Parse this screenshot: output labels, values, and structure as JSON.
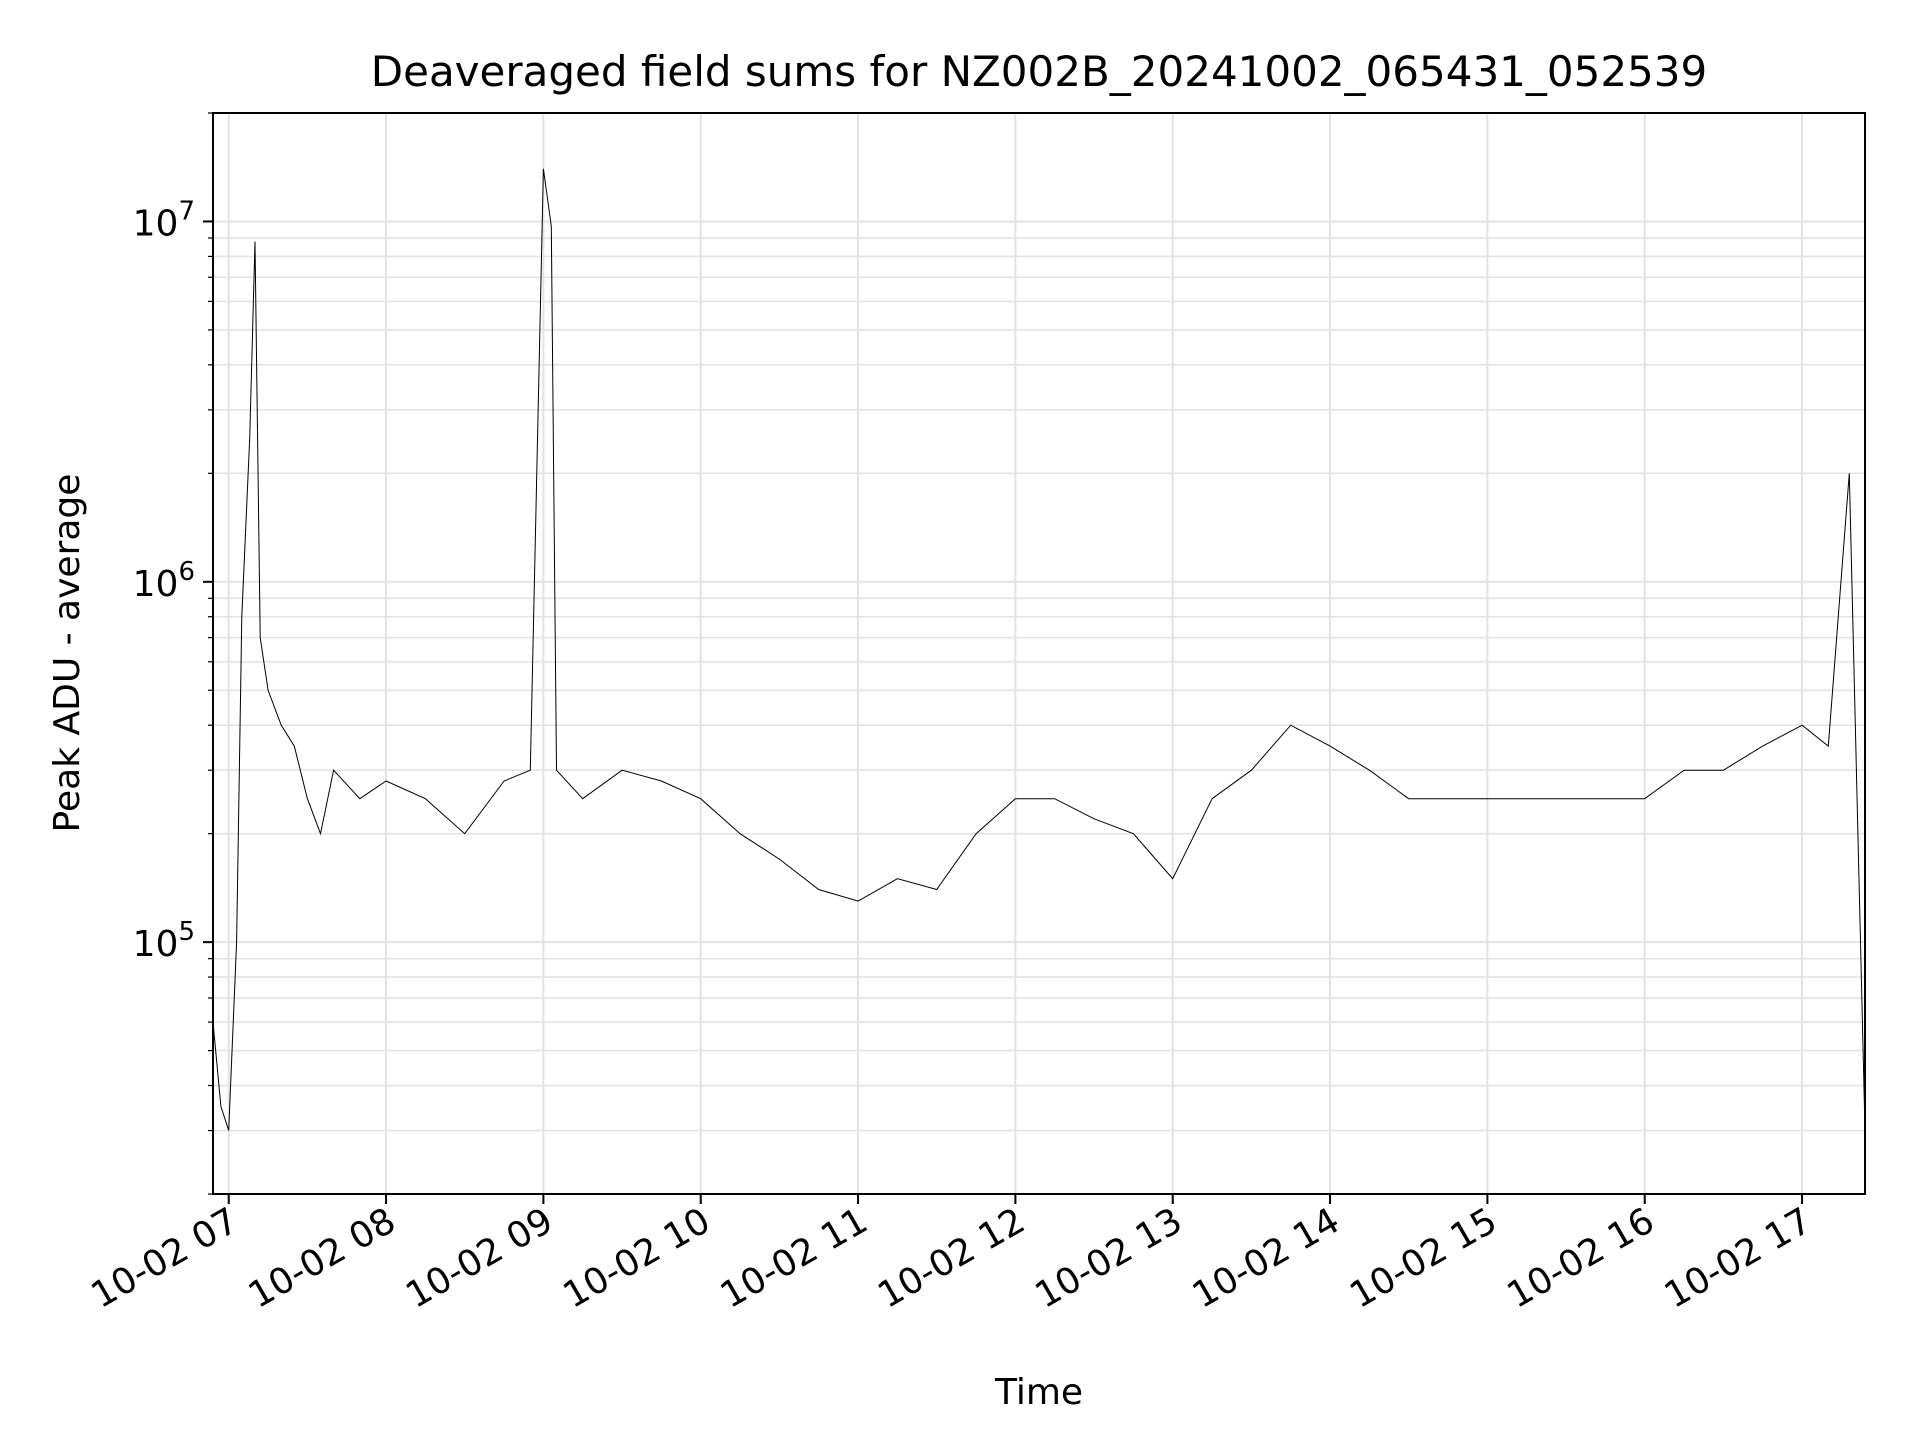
{
  "chart_data": {
    "type": "line",
    "title": "Deaveraged field sums for NZ002B_20241002_065431_052539",
    "xlabel": "Time",
    "ylabel": "Peak ADU - average",
    "yscale": "log",
    "ylim": [
      20000,
      20000000
    ],
    "xlim": [
      "2024-10-02 06:54",
      "2024-10-02 17:24"
    ],
    "grid": true,
    "x_tick_labels": [
      "10-02 07",
      "10-02 08",
      "10-02 09",
      "10-02 10",
      "10-02 11",
      "10-02 12",
      "10-02 13",
      "10-02 14",
      "10-02 15",
      "10-02 16",
      "10-02 17"
    ],
    "x_tick_values": [
      "2024-10-02 07:00",
      "2024-10-02 08:00",
      "2024-10-02 09:00",
      "2024-10-02 10:00",
      "2024-10-02 11:00",
      "2024-10-02 12:00",
      "2024-10-02 13:00",
      "2024-10-02 14:00",
      "2024-10-02 15:00",
      "2024-10-02 16:00",
      "2024-10-02 17:00"
    ],
    "y_tick_labels": [
      {
        "base": "10",
        "exp": "5",
        "value": 100000
      },
      {
        "base": "10",
        "exp": "6",
        "value": 1000000
      },
      {
        "base": "10",
        "exp": "7",
        "value": 10000000
      }
    ],
    "line_color": "#000000",
    "series": [
      {
        "x": [
          "2024-10-02 06:54",
          "2024-10-02 06:57",
          "2024-10-02 07:00",
          "2024-10-02 07:03",
          "2024-10-02 07:05",
          "2024-10-02 07:08",
          "2024-10-02 07:10",
          "2024-10-02 07:12",
          "2024-10-02 07:15",
          "2024-10-02 07:20",
          "2024-10-02 07:25",
          "2024-10-02 07:30",
          "2024-10-02 07:35",
          "2024-10-02 07:40",
          "2024-10-02 07:50",
          "2024-10-02 08:00",
          "2024-10-02 08:15",
          "2024-10-02 08:30",
          "2024-10-02 08:45",
          "2024-10-02 08:55",
          "2024-10-02 09:00",
          "2024-10-02 09:03",
          "2024-10-02 09:05",
          "2024-10-02 09:15",
          "2024-10-02 09:30",
          "2024-10-02 09:45",
          "2024-10-02 10:00",
          "2024-10-02 10:15",
          "2024-10-02 10:30",
          "2024-10-02 10:45",
          "2024-10-02 11:00",
          "2024-10-02 11:15",
          "2024-10-02 11:30",
          "2024-10-02 11:45",
          "2024-10-02 12:00",
          "2024-10-02 12:15",
          "2024-10-02 12:30",
          "2024-10-02 12:45",
          "2024-10-02 13:00",
          "2024-10-02 13:15",
          "2024-10-02 13:30",
          "2024-10-02 13:45",
          "2024-10-02 14:00",
          "2024-10-02 14:15",
          "2024-10-02 14:30",
          "2024-10-02 14:45",
          "2024-10-02 15:00",
          "2024-10-02 15:15",
          "2024-10-02 15:30",
          "2024-10-02 15:45",
          "2024-10-02 16:00",
          "2024-10-02 16:15",
          "2024-10-02 16:30",
          "2024-10-02 16:45",
          "2024-10-02 17:00",
          "2024-10-02 17:10",
          "2024-10-02 17:18",
          "2024-10-02 17:24"
        ],
        "y": [
          60000,
          35000,
          30000,
          100000,
          800000,
          2500000,
          8800000,
          700000,
          500000,
          400000,
          350000,
          250000,
          200000,
          300000,
          250000,
          280000,
          250000,
          200000,
          280000,
          300000,
          14000000,
          9700000,
          300000,
          250000,
          300000,
          280000,
          250000,
          200000,
          170000,
          140000,
          130000,
          150000,
          140000,
          200000,
          250000,
          250000,
          220000,
          200000,
          150000,
          250000,
          300000,
          400000,
          350000,
          300000,
          250000,
          250000,
          250000,
          250000,
          250000,
          250000,
          250000,
          300000,
          300000,
          350000,
          400000,
          350000,
          2000000,
          30000
        ]
      }
    ]
  }
}
